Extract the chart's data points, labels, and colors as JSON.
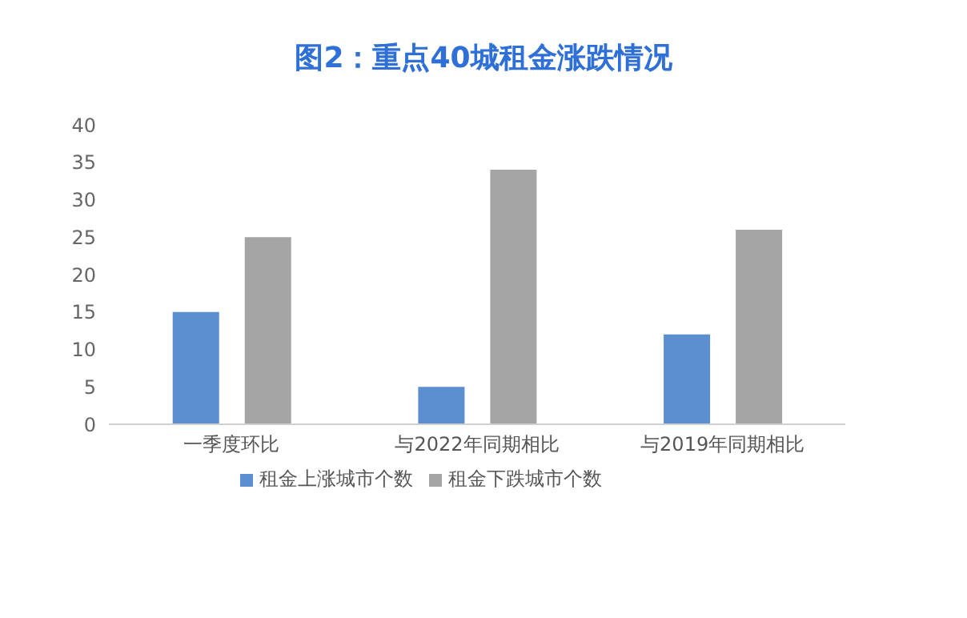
{
  "chart_data": {
    "type": "bar",
    "title": "图2：重点40城租金涨跌情况",
    "categories": [
      "一季度环比",
      "与2022年同期相比",
      "与2019年同期相比"
    ],
    "series": [
      {
        "name": "租金上涨城市个数",
        "color": "#5b8fd0",
        "values": [
          15,
          5,
          12
        ]
      },
      {
        "name": "租金下跌城市个数",
        "color": "#a5a5a5",
        "values": [
          25,
          34,
          26
        ]
      }
    ],
    "ylim": [
      0,
      40
    ],
    "yticks": [
      0,
      5,
      10,
      15,
      20,
      25,
      30,
      35,
      40
    ],
    "grid": false,
    "legend": "bottom"
  }
}
